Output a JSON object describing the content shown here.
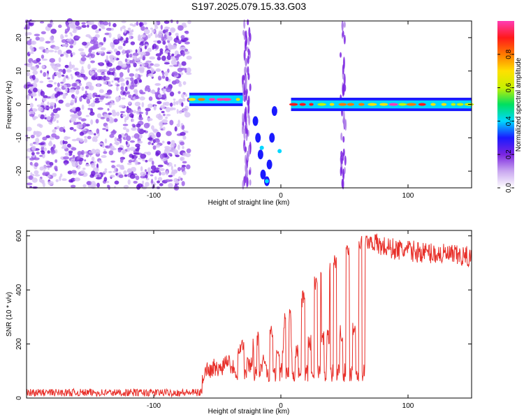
{
  "figure": {
    "title": "S197.2025.079.15.33.G03"
  },
  "chart_data": [
    {
      "type": "heatmap",
      "xlabel": "Height of straight line (km)",
      "ylabel": "Frequency (Hz)",
      "xlim": [
        -200,
        150
      ],
      "ylim": [
        -25,
        25
      ],
      "xticks": [
        -100,
        0,
        100
      ],
      "yticks": [
        -20,
        -10,
        0,
        10,
        20
      ],
      "colorbar": {
        "label": "Normalized spectral amplitude",
        "range": [
          0,
          1
        ],
        "ticks": [
          "0.0",
          "0.2",
          "0.4",
          "0.6",
          "0.8"
        ],
        "colors": [
          "#ffffff",
          "#c9a7f0",
          "#7b25e0",
          "#1a1aff",
          "#00d8ff",
          "#00e060",
          "#c8f000",
          "#ffe000",
          "#ff7a00",
          "#ff1a1a",
          "#ff3cb4"
        ]
      },
      "regions": [
        {
          "name": "noise",
          "x_range": [
            -200,
            -72
          ],
          "freq_range": [
            -25,
            25
          ],
          "amplitude": 0.15
        },
        {
          "name": "trace-left",
          "x_range": [
            -72,
            -30
          ],
          "freq": 1.5,
          "amplitude": 0.75
        },
        {
          "name": "vertical-streak",
          "x_range": [
            -30,
            -26
          ],
          "freq_range": [
            -25,
            25
          ],
          "amplitude": 0.2
        },
        {
          "name": "vertical-streak",
          "x_range": [
            -28,
            -24
          ],
          "freq_range": [
            -25,
            25
          ],
          "amplitude": 0.25
        },
        {
          "name": "dip",
          "x_range": [
            -20,
            -5
          ],
          "freq_min": -23,
          "amplitude": 0.4
        },
        {
          "name": "trace-right",
          "x_range": [
            8,
            150
          ],
          "freq": 0,
          "amplitude": 0.8
        },
        {
          "name": "vertical-streak",
          "x_range": [
            47,
            51
          ],
          "freq_range": [
            -25,
            25
          ],
          "amplitude": 0.15
        }
      ]
    },
    {
      "type": "line",
      "xlabel": "Height of straight line (km)",
      "ylabel": "SNR (10 * v/v)",
      "xlim": [
        -200,
        150
      ],
      "ylim": [
        0,
        620
      ],
      "xticks": [
        -100,
        0,
        100
      ],
      "yticks": [
        0,
        200,
        400,
        600
      ],
      "line_color": "#e8302a",
      "series": [
        {
          "x": [
            -200,
            -170,
            -140,
            -110,
            -80,
            -62,
            -60,
            -55,
            -50,
            -45,
            -40,
            -35,
            -30,
            -25,
            -20,
            -15,
            -10,
            -5,
            0,
            5,
            10,
            15,
            20,
            25,
            30,
            35,
            40,
            45,
            50,
            55,
            60,
            65,
            70,
            72,
            75,
            80,
            90,
            100,
            110,
            120,
            130,
            140,
            150
          ],
          "y": [
            20,
            20,
            20,
            20,
            20,
            20,
            120,
            100,
            140,
            130,
            150,
            170,
            200,
            180,
            220,
            210,
            230,
            250,
            280,
            290,
            320,
            350,
            390,
            420,
            440,
            470,
            500,
            510,
            520,
            560,
            570,
            575,
            580,
            580,
            570,
            560,
            550,
            545,
            540,
            535,
            530,
            525,
            520
          ]
        }
      ],
      "dropouts": {
        "x": [
          -35,
          -28,
          -20,
          -16,
          -10,
          -5,
          0,
          5,
          10,
          15,
          20,
          25,
          30,
          35,
          40,
          45,
          50,
          55,
          60,
          65
        ],
        "low": 60,
        "high": 130
      }
    }
  ]
}
